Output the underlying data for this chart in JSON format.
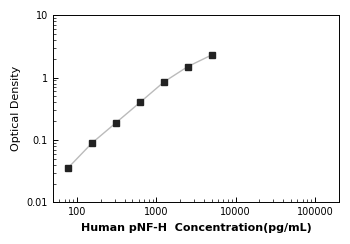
{
  "x": [
    78,
    156,
    313,
    625,
    1250,
    2500,
    5000
  ],
  "y": [
    0.036,
    0.09,
    0.19,
    0.4,
    0.85,
    1.5,
    2.3
  ],
  "xlabel": "Human pNF-H  Concentration(pg/mL)",
  "ylabel": "Optical Density",
  "xlim": [
    50,
    200000
  ],
  "ylim": [
    0.01,
    10
  ],
  "line_color": "#bbbbbb",
  "marker_color": "#222222",
  "marker": "s",
  "marker_size": 4,
  "line_width": 1.0,
  "xlabel_fontsize": 8,
  "ylabel_fontsize": 8,
  "tick_fontsize": 7,
  "xlabel_fontweight": "bold",
  "background_color": "#ffffff",
  "yticks": [
    0.01,
    0.1,
    1,
    10
  ],
  "ytick_labels": [
    "0.01",
    "0.1",
    "1",
    "10"
  ],
  "xticks": [
    100,
    1000,
    10000,
    100000
  ],
  "xtick_labels": [
    "100",
    "1000",
    "10000",
    "100000"
  ]
}
